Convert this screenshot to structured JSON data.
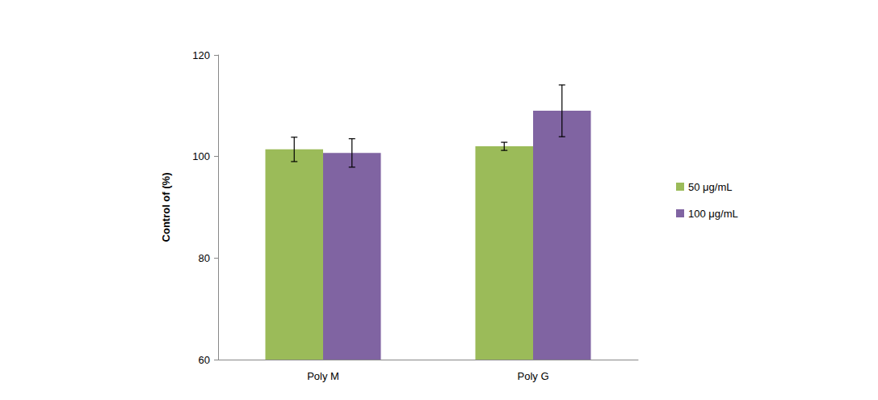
{
  "chart_data": {
    "type": "bar",
    "ylabel": "Control of (%)",
    "categories": [
      "Poly M",
      "Poly G"
    ],
    "series": [
      {
        "name": "50 μg/mL",
        "color": "#9bbb59",
        "values": [
          101.4,
          102.0
        ],
        "errors": [
          2.4,
          0.8
        ]
      },
      {
        "name": "100 μg/mL",
        "color": "#8064a2",
        "values": [
          100.7,
          109.0
        ],
        "errors": [
          2.8,
          5.1
        ]
      }
    ],
    "ylim": [
      60,
      120
    ],
    "yticks": [
      60,
      80,
      100,
      120
    ],
    "grid": false,
    "legend": "right"
  }
}
